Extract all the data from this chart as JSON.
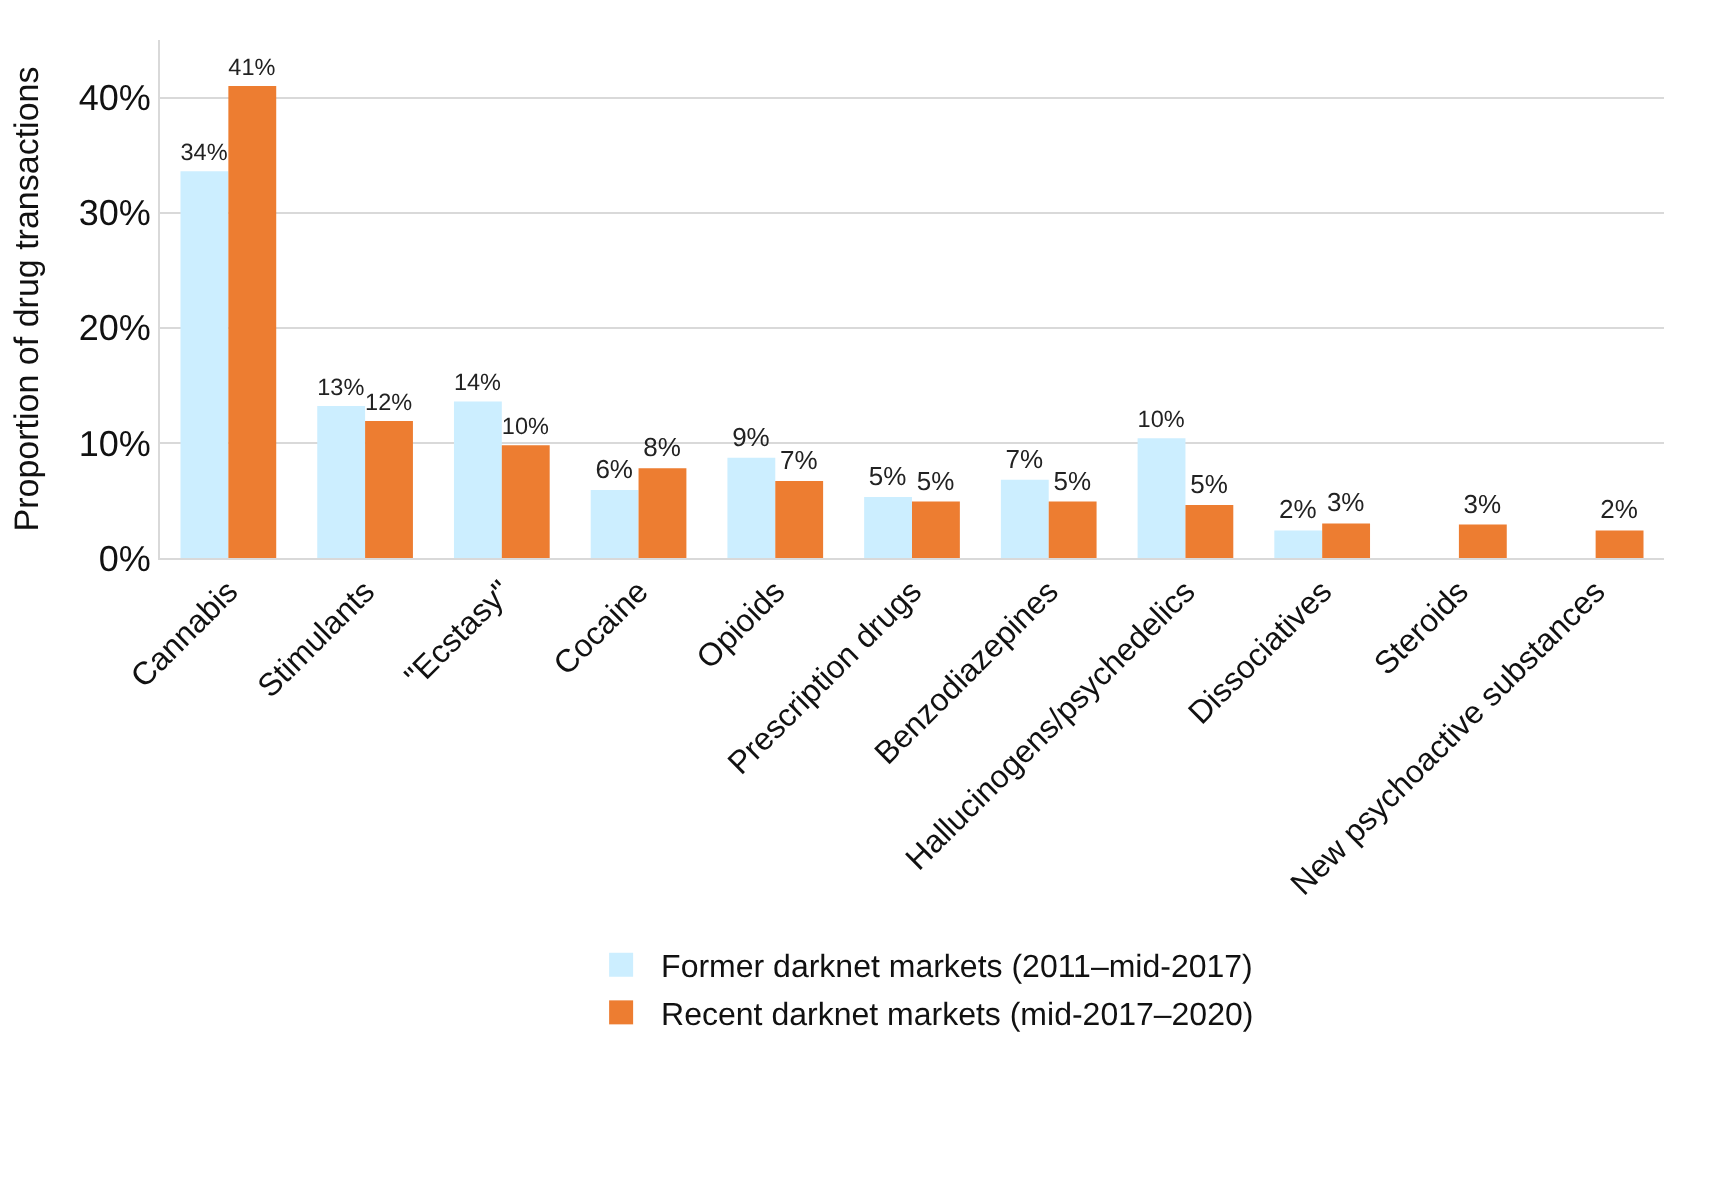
{
  "chart_data": {
    "type": "bar",
    "ylabel": "Proportion of drug transactions",
    "categories": [
      "Cannabis",
      "Stimulants",
      "\"Ecstasy\"",
      "Cocaine",
      "Opioids",
      "Prescription drugs",
      "Benzodiazepines",
      "Hallucinogens/psychedelics",
      "Dissociatives",
      "Steroids",
      "New psychoactive substances"
    ],
    "series": [
      {
        "name": "Former darknet markets (2011–mid-2017)",
        "color": "#cceeff",
        "values": [
          33.6,
          13.2,
          13.6,
          5.9,
          8.7,
          5.3,
          6.8,
          10.4,
          2.4,
          null,
          null
        ],
        "value_labels": [
          "34%",
          "13%",
          "14%",
          "6%",
          "9%",
          "5%",
          "7%",
          "10%",
          "2%",
          null,
          null
        ]
      },
      {
        "name": "Recent darknet markets (mid-2017–2020)",
        "color": "#ed7d31",
        "values": [
          41.0,
          11.9,
          9.8,
          7.8,
          6.7,
          4.9,
          4.9,
          4.6,
          3.0,
          2.9,
          2.4
        ],
        "value_labels": [
          "41%",
          "12%",
          "10%",
          "8%",
          "7%",
          "5%",
          "5%",
          "5%",
          "3%",
          "3%",
          "2%"
        ]
      }
    ],
    "ylim": [
      0,
      45
    ],
    "yticks": [
      {
        "value": 0,
        "label": "0%"
      },
      {
        "value": 10,
        "label": "10%"
      },
      {
        "value": 20,
        "label": "20%"
      },
      {
        "value": 30,
        "label": "30%"
      },
      {
        "value": 40,
        "label": "40%"
      }
    ],
    "grid": "y",
    "legend": "bottom"
  }
}
